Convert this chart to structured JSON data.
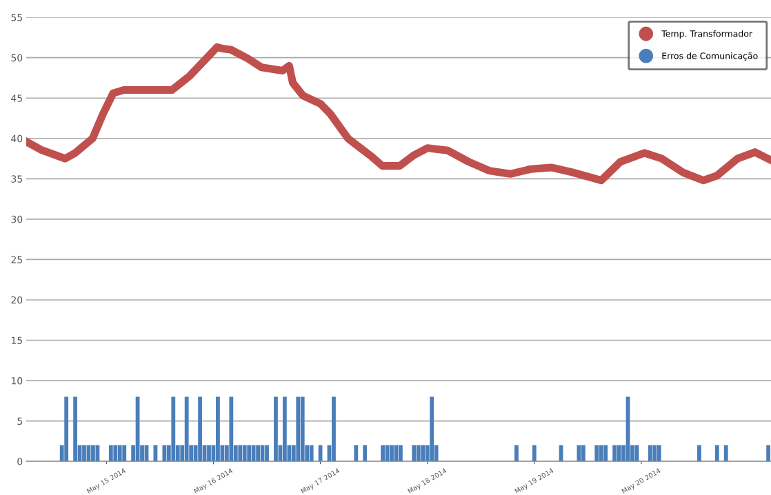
{
  "chart_data": {
    "type": "line",
    "xlim": [
      "2014-05-14T06:00",
      "2014-05-21T05:06"
    ],
    "ylim": [
      0,
      55
    ],
    "yticks": [
      0,
      5,
      10,
      15,
      20,
      25,
      30,
      35,
      40,
      45,
      50,
      55
    ],
    "xticks": [
      {
        "value": "2014-05-15",
        "label": "May 15 2014"
      },
      {
        "value": "2014-05-16",
        "label": "May 16 2014"
      },
      {
        "value": "2014-05-17",
        "label": "May 17 2014"
      },
      {
        "value": "2014-05-18",
        "label": "May 18 2014"
      },
      {
        "value": "2014-05-19",
        "label": "May 19 2014"
      },
      {
        "value": "2014-05-20",
        "label": "May 20 2014"
      }
    ],
    "grid": "y",
    "legend": "top right",
    "marker": "none",
    "line_style": "solid",
    "series": [
      {
        "name": "Temp. Transformador",
        "color": "#c0504d",
        "x": [
          "2014-05-14T06:00",
          "2014-05-14T09:18",
          "2014-05-14T14:42",
          "2014-05-14T17:00",
          "2014-05-14T20:54",
          "2014-05-14T23:12",
          "2014-05-15T01:30",
          "2014-05-15T03:54",
          "2014-05-15T14:42",
          "2014-05-15T18:36",
          "2014-05-15T22:24",
          "2014-05-16T00:48",
          "2014-05-16T02:18",
          "2014-05-16T03:54",
          "2014-05-16T07:42",
          "2014-05-16T10:48",
          "2014-05-16T15:30",
          "2014-05-16T17:00",
          "2014-05-16T17:48",
          "2014-05-16T20:06",
          "2014-05-17T00:00",
          "2014-05-17T02:18",
          "2014-05-17T06:12",
          "2014-05-17T11:36",
          "2014-05-17T13:54",
          "2014-05-17T17:48",
          "2014-05-17T20:54",
          "2014-05-18T00:00",
          "2014-05-18T04:36",
          "2014-05-18T09:18",
          "2014-05-18T13:54",
          "2014-05-18T18:36",
          "2014-05-18T23:12",
          "2014-05-19T03:48",
          "2014-05-19T08:30",
          "2014-05-19T13:06",
          "2014-05-19T15:00",
          "2014-05-19T19:18",
          "2014-05-20T00:42",
          "2014-05-20T04:36",
          "2014-05-20T09:18",
          "2014-05-20T13:54",
          "2014-05-20T17:00",
          "2014-05-20T21:36",
          "2014-05-21T01:30",
          "2014-05-21T05:06"
        ],
        "values": [
          39.6,
          38.6,
          37.5,
          38.2,
          40.0,
          43.0,
          45.6,
          46.0,
          46.0,
          47.7,
          49.9,
          51.3,
          51.1,
          51.0,
          49.9,
          48.8,
          48.4,
          49.0,
          46.9,
          45.3,
          44.3,
          43.0,
          40.0,
          37.7,
          36.6,
          36.6,
          37.9,
          38.8,
          38.5,
          37.1,
          36.0,
          35.6,
          36.2,
          36.4,
          35.8,
          35.1,
          34.8,
          37.1,
          38.2,
          37.5,
          35.8,
          34.8,
          35.4,
          37.5,
          38.3,
          37.3
        ]
      },
      {
        "name": "Erros de Comunicação",
        "type": "bar",
        "color": "#4a7ebb",
        "x": [
          "2014-05-14T14:00",
          "2014-05-14T15:00",
          "2014-05-14T17:00",
          "2014-05-14T18:00",
          "2014-05-14T19:00",
          "2014-05-14T20:00",
          "2014-05-14T21:00",
          "2014-05-14T22:00",
          "2014-05-15T01:00",
          "2014-05-15T02:00",
          "2014-05-15T03:00",
          "2014-05-15T04:00",
          "2014-05-15T06:00",
          "2014-05-15T07:00",
          "2014-05-15T08:00",
          "2014-05-15T09:00",
          "2014-05-15T11:00",
          "2014-05-15T13:00",
          "2014-05-15T14:00",
          "2014-05-15T15:00",
          "2014-05-15T16:00",
          "2014-05-15T17:00",
          "2014-05-15T18:00",
          "2014-05-15T19:00",
          "2014-05-15T20:00",
          "2014-05-15T21:00",
          "2014-05-15T22:00",
          "2014-05-15T23:00",
          "2014-05-16T00:00",
          "2014-05-16T01:00",
          "2014-05-16T02:00",
          "2014-05-16T03:00",
          "2014-05-16T04:00",
          "2014-05-16T05:00",
          "2014-05-16T06:00",
          "2014-05-16T07:00",
          "2014-05-16T08:00",
          "2014-05-16T09:00",
          "2014-05-16T10:00",
          "2014-05-16T11:00",
          "2014-05-16T12:00",
          "2014-05-16T14:00",
          "2014-05-16T15:00",
          "2014-05-16T16:00",
          "2014-05-16T17:00",
          "2014-05-16T18:00",
          "2014-05-16T19:00",
          "2014-05-16T20:00",
          "2014-05-16T21:00",
          "2014-05-16T22:00",
          "2014-05-17T00:00",
          "2014-05-17T02:00",
          "2014-05-17T03:00",
          "2014-05-17T08:00",
          "2014-05-17T10:00",
          "2014-05-17T14:00",
          "2014-05-17T15:00",
          "2014-05-17T16:00",
          "2014-05-17T17:00",
          "2014-05-17T18:00",
          "2014-05-17T21:00",
          "2014-05-17T22:00",
          "2014-05-17T23:00",
          "2014-05-18T00:00",
          "2014-05-18T01:00",
          "2014-05-18T02:00",
          "2014-05-18T20:00",
          "2014-05-19T00:00",
          "2014-05-19T06:00",
          "2014-05-19T10:00",
          "2014-05-19T11:00",
          "2014-05-19T14:00",
          "2014-05-19T15:00",
          "2014-05-19T16:00",
          "2014-05-19T18:00",
          "2014-05-19T19:00",
          "2014-05-19T20:00",
          "2014-05-19T21:00",
          "2014-05-19T22:00",
          "2014-05-19T23:00",
          "2014-05-20T02:00",
          "2014-05-20T03:00",
          "2014-05-20T04:00",
          "2014-05-20T13:00",
          "2014-05-20T17:00",
          "2014-05-20T19:00",
          "2014-05-21T04:30"
        ],
        "values": [
          2,
          8,
          8,
          2,
          2,
          2,
          2,
          2,
          2,
          2,
          2,
          2,
          2,
          8,
          2,
          2,
          2,
          2,
          2,
          8,
          2,
          2,
          8,
          2,
          2,
          8,
          2,
          2,
          2,
          8,
          2,
          2,
          8,
          2,
          2,
          2,
          2,
          2,
          2,
          2,
          2,
          8,
          2,
          8,
          2,
          2,
          8,
          8,
          2,
          2,
          2,
          2,
          8,
          2,
          2,
          2,
          2,
          2,
          2,
          2,
          2,
          2,
          2,
          2,
          8,
          2,
          2,
          2,
          2,
          2,
          2,
          2,
          2,
          2,
          2,
          2,
          2,
          8,
          2,
          2,
          2,
          2,
          2,
          2,
          2,
          2,
          2
        ]
      }
    ]
  }
}
